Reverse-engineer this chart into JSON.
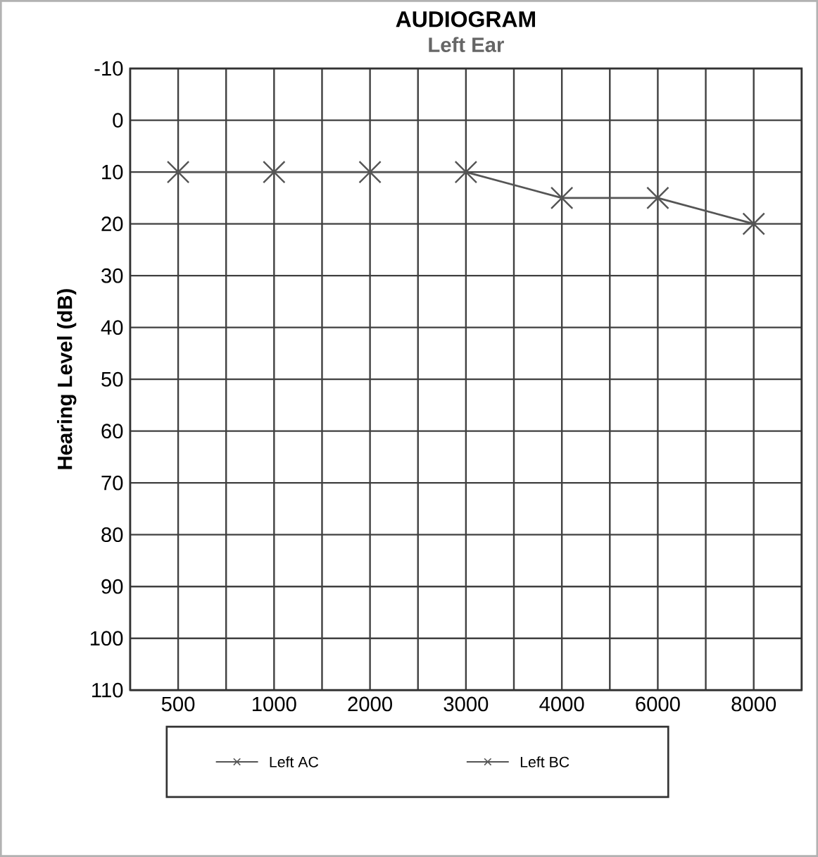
{
  "chart_data": {
    "type": "line",
    "title": "AUDIOGRAM",
    "subtitle": "Left Ear",
    "ylabel": "Hearing Level (dB)",
    "categories": [
      "500",
      "1000",
      "2000",
      "3000",
      "4000",
      "6000",
      "8000"
    ],
    "series": [
      {
        "name": "Left AC",
        "color": "#555555",
        "values": [
          10,
          10,
          10,
          10,
          15,
          15,
          20
        ]
      },
      {
        "name": "Left BC",
        "color": "#555555",
        "values": [
          null,
          null,
          null,
          null,
          null,
          null,
          null
        ]
      }
    ],
    "ylim": [
      110,
      -10
    ],
    "yticks": [
      -10,
      0,
      10,
      20,
      30,
      40,
      50,
      60,
      70,
      80,
      90,
      100,
      110
    ],
    "grid": true,
    "legend": "bottom",
    "marker": "cross",
    "line_style": "solid"
  }
}
